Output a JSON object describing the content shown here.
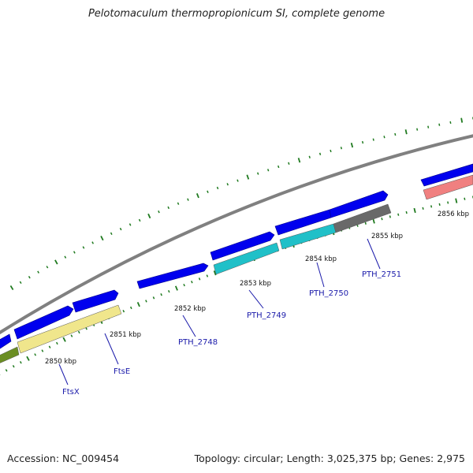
{
  "title": "Pelotomaculum thermopropionicum SI, complete genome",
  "footer": {
    "accession": "Accession: NC_009454",
    "topology": "Topology: circular; Length: 3,025,375 bp; Genes: 2,975"
  },
  "coordinates": [
    "2850 kbp",
    "2851 kbp",
    "2852 kbp",
    "2853 kbp",
    "2854 kbp",
    "2855 kbp",
    "2856 kbp"
  ],
  "gene_labels": [
    "FtsX",
    "FtsE",
    "PTH_2748",
    "PTH_2749",
    "PTH_2750",
    "PTH_2751"
  ],
  "colors": {
    "backbone": "#808080",
    "cds": "#0000ee",
    "ticks": "#1f7a1f",
    "ftsx": "#6b8e23",
    "ftse": "#f0e68c",
    "pth_2749": "#20c0c8",
    "pth_2750": "#20c0c8",
    "pth_2751": "#696969",
    "next_gene": "#f08080"
  }
}
